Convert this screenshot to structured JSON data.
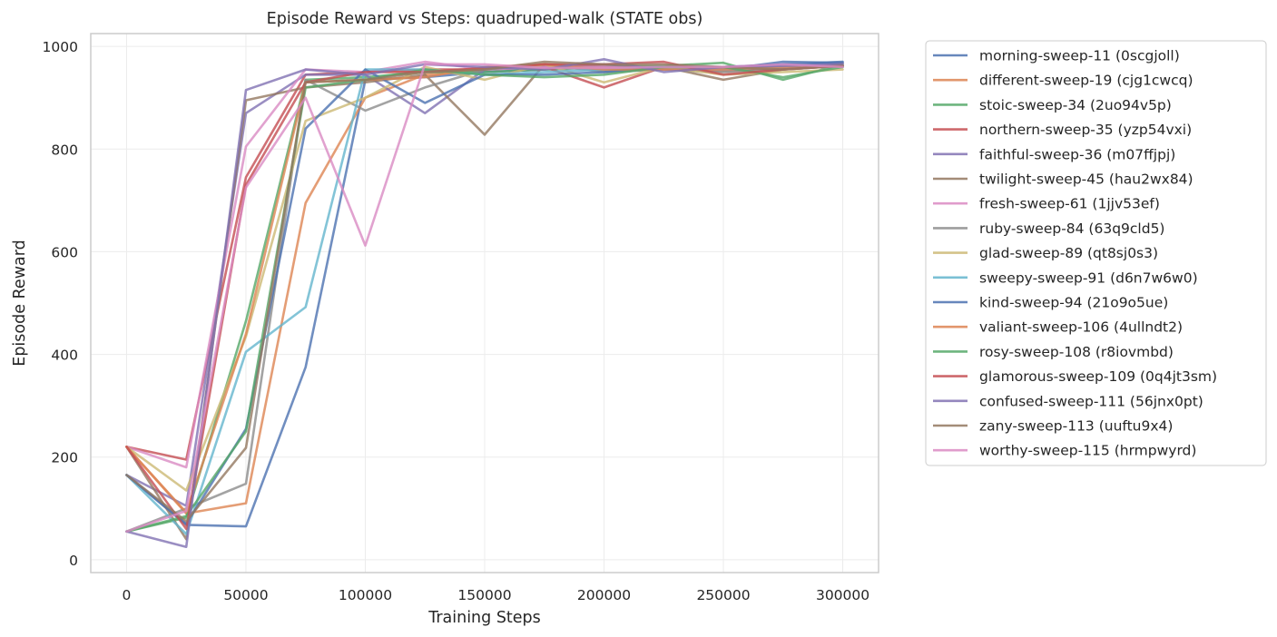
{
  "chart_data": {
    "type": "line",
    "title": "Episode Reward vs Steps: quadruped-walk (STATE obs)",
    "xlabel": "Training Steps",
    "ylabel": "Episode Reward",
    "xlim": [
      -15000,
      315000
    ],
    "ylim": [
      -25,
      1025
    ],
    "xticks": [
      0,
      50000,
      100000,
      150000,
      200000,
      250000,
      300000
    ],
    "xtick_labels": [
      "0",
      "50000",
      "100000",
      "150000",
      "200000",
      "250000",
      "300000"
    ],
    "yticks": [
      0,
      200,
      400,
      600,
      800,
      1000
    ],
    "ytick_labels": [
      "0",
      "200",
      "400",
      "600",
      "800",
      "1000"
    ],
    "grid": true,
    "legend_position": "outside-right",
    "x": [
      0,
      25000,
      50000,
      75000,
      100000,
      125000,
      150000,
      175000,
      200000,
      225000,
      250000,
      275000,
      300000
    ],
    "series": [
      {
        "name": "morning-sweep-11 (0scgjoll)",
        "color": "#4c72b0",
        "values": [
          165,
          68,
          65,
          375,
          935,
          940,
          950,
          955,
          960,
          958,
          955,
          970,
          968
        ]
      },
      {
        "name": "different-sweep-19 (cjg1cwcq)",
        "color": "#dd8452",
        "values": [
          220,
          90,
          110,
          695,
          900,
          945,
          955,
          960,
          955,
          958,
          952,
          958,
          962
        ]
      },
      {
        "name": "stoic-sweep-34 (2uo94v5p)",
        "color": "#55a868",
        "values": [
          55,
          82,
          465,
          935,
          940,
          950,
          950,
          955,
          960,
          962,
          968,
          935,
          965
        ]
      },
      {
        "name": "northern-sweep-35 (yzp54vxi)",
        "color": "#c44e52",
        "values": [
          220,
          195,
          745,
          945,
          950,
          955,
          955,
          960,
          920,
          960,
          955,
          958,
          962
        ]
      },
      {
        "name": "faithful-sweep-36 (m07ffjpj)",
        "color": "#8172b3",
        "values": [
          165,
          105,
          870,
          945,
          945,
          870,
          955,
          960,
          965,
          955,
          960,
          960,
          968
        ]
      },
      {
        "name": "twilight-sweep-45 (hau2wx84)",
        "color": "#937860",
        "values": [
          220,
          40,
          895,
          920,
          930,
          945,
          828,
          965,
          960,
          960,
          935,
          955,
          965
        ]
      },
      {
        "name": "fresh-sweep-61 (1jjv53ef)",
        "color": "#da8bc3",
        "values": [
          220,
          180,
          805,
          955,
          950,
          970,
          955,
          960,
          960,
          955,
          955,
          960,
          960
        ]
      },
      {
        "name": "ruby-sweep-84 (63q9cld5)",
        "color": "#8c8c8c",
        "values": [
          55,
          100,
          148,
          935,
          875,
          920,
          955,
          965,
          950,
          955,
          950,
          955,
          962
        ]
      },
      {
        "name": "glad-sweep-89 (qt8sj0s3)",
        "color": "#ccb974",
        "values": [
          220,
          135,
          435,
          855,
          900,
          960,
          935,
          965,
          930,
          960,
          945,
          950,
          955
        ]
      },
      {
        "name": "sweepy-sweep-91 (d6n7w6w0)",
        "color": "#64b5cd",
        "values": [
          165,
          50,
          405,
          492,
          955,
          955,
          945,
          950,
          955,
          960,
          955,
          960,
          960
        ]
      },
      {
        "name": "kind-sweep-94 (21o9o5ue)",
        "color": "#4c72b0",
        "values": [
          165,
          70,
          255,
          840,
          955,
          890,
          945,
          945,
          950,
          960,
          960,
          965,
          970
        ]
      },
      {
        "name": "valiant-sweep-106 (4ullndt2)",
        "color": "#dd8452",
        "values": [
          220,
          92,
          440,
          930,
          935,
          940,
          960,
          965,
          955,
          955,
          955,
          960,
          962
        ]
      },
      {
        "name": "rosy-sweep-108 (r8iovmbd)",
        "color": "#55a868",
        "values": [
          55,
          85,
          250,
          920,
          935,
          955,
          945,
          940,
          945,
          960,
          960,
          940,
          960
        ]
      },
      {
        "name": "glamorous-sweep-109 (0q4jt3sm)",
        "color": "#c44e52",
        "values": [
          220,
          60,
          730,
          930,
          950,
          950,
          958,
          965,
          965,
          970,
          945,
          955,
          962
        ]
      },
      {
        "name": "confused-sweep-111 (56jnx0pt)",
        "color": "#8172b3",
        "values": [
          55,
          25,
          915,
          955,
          945,
          965,
          960,
          955,
          975,
          950,
          960,
          962,
          965
        ]
      },
      {
        "name": "zany-sweep-113 (uuftu9x4)",
        "color": "#937860",
        "values": [
          165,
          75,
          218,
          930,
          935,
          950,
          955,
          970,
          965,
          965,
          960,
          955,
          962
        ]
      },
      {
        "name": "worthy-sweep-115 (hrmpwyrd)",
        "color": "#da8bc3",
        "values": [
          55,
          95,
          725,
          900,
          612,
          965,
          965,
          958,
          958,
          960,
          960,
          965,
          960
        ]
      }
    ]
  }
}
